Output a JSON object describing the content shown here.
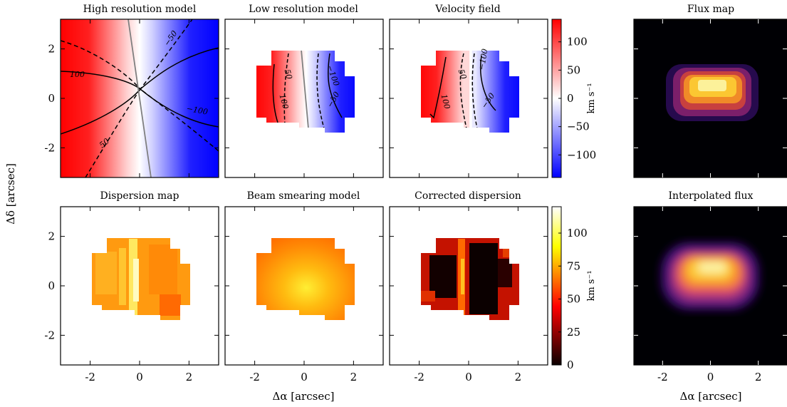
{
  "figure": {
    "ylabel": "Δδ [arcsec]",
    "xlabel_left": "Δα [arcsec]",
    "xlabel_right": "Δα [arcsec]"
  },
  "chart_data": [
    {
      "type": "heatmap",
      "title": "High resolution model",
      "xlim": [
        -3.2,
        3.2
      ],
      "ylim": [
        -3.2,
        3.2
      ],
      "xticks": [
        -2,
        0,
        2
      ],
      "yticks": [
        -2,
        0,
        2
      ],
      "colormap": "bwr",
      "major_axis_line": [
        [
          0.5,
          -3.2
        ],
        [
          -0.45,
          3.2
        ]
      ],
      "contour_labels": [
        "100",
        "50",
        "−50",
        "−100",
        "50"
      ]
    },
    {
      "type": "heatmap",
      "title": "Low resolution model",
      "xlim": [
        -3.2,
        3.2
      ],
      "ylim": [
        -3.2,
        3.2
      ],
      "xticks": [
        -2,
        0,
        2
      ],
      "yticks": [
        -2,
        0,
        2
      ],
      "colormap": "bwr",
      "contour_labels": [
        "50",
        "100",
        "−100",
        "−50"
      ]
    },
    {
      "type": "heatmap",
      "title": "Velocity field",
      "xlim": [
        -3.2,
        3.2
      ],
      "ylim": [
        -3.2,
        3.2
      ],
      "xticks": [
        -2,
        0,
        2
      ],
      "yticks": [
        -2,
        0,
        2
      ],
      "colormap": "bwr",
      "contour_labels": [
        "50",
        "100",
        "−100",
        "−50"
      ]
    },
    {
      "type": "heatmap",
      "title": "Flux map",
      "colormap": "inferno"
    },
    {
      "type": "heatmap",
      "title": "Dispersion map",
      "xlim": [
        -3.2,
        3.2
      ],
      "ylim": [
        -3.2,
        3.2
      ],
      "xticks": [
        -2,
        0,
        2
      ],
      "yticks": [
        -2,
        0,
        2
      ],
      "colormap": "hot"
    },
    {
      "type": "heatmap",
      "title": "Beam smearing model",
      "xlim": [
        -3.2,
        3.2
      ],
      "ylim": [
        -3.2,
        3.2
      ],
      "xticks": [
        -2,
        0,
        2
      ],
      "yticks": [
        -2,
        0,
        2
      ],
      "colormap": "hot"
    },
    {
      "type": "heatmap",
      "title": "Corrected dispersion",
      "xlim": [
        -3.2,
        3.2
      ],
      "ylim": [
        -3.2,
        3.2
      ],
      "xticks": [
        -2,
        0,
        2
      ],
      "yticks": [
        -2,
        0,
        2
      ],
      "colormap": "hot"
    },
    {
      "type": "heatmap",
      "title": "Interpolated flux",
      "xlim": [
        -3.2,
        3.2
      ],
      "xticks": [
        -2,
        0,
        2
      ],
      "colormap": "inferno"
    }
  ],
  "colorbars": [
    {
      "label": "km s⁻¹",
      "range": [
        -140,
        140
      ],
      "ticks": [
        100,
        50,
        0,
        -50,
        -100
      ],
      "tick_labels": [
        "100",
        "50",
        "0",
        "−50",
        "−100"
      ],
      "colormap": "bwr"
    },
    {
      "label": "km s⁻¹",
      "range": [
        0,
        120
      ],
      "ticks": [
        100,
        75,
        50,
        25,
        0
      ],
      "tick_labels": [
        "100",
        "75",
        "50",
        "25",
        "0"
      ],
      "colormap": "hot"
    }
  ]
}
